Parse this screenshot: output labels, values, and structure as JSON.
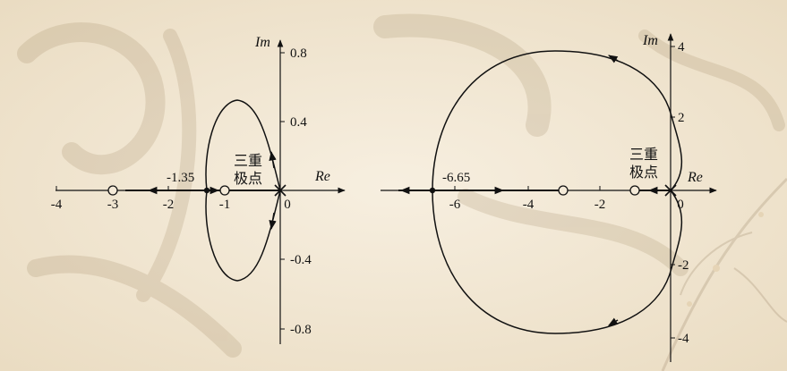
{
  "colors": {
    "background": "#f4ead8",
    "ink": "#111111"
  },
  "left_plot": {
    "axis_labels": {
      "real": "Re",
      "imag": "Im"
    },
    "x_ticks": [
      "-4",
      "-3",
      "-2",
      "-1",
      "0"
    ],
    "y_ticks": [
      "0.8",
      "0.4",
      "-0.4",
      "-0.8"
    ],
    "breakaway_label": "-1.35",
    "pole_note_line1": "三重",
    "pole_note_line2": "极点"
  },
  "right_plot": {
    "axis_labels": {
      "real": "Re",
      "imag": "Im"
    },
    "x_ticks": [
      "-6",
      "-4",
      "-2",
      "0"
    ],
    "y_ticks": [
      "4",
      "2",
      "-2",
      "-4"
    ],
    "breakaway_label": "-6.65",
    "pole_note_line1": "三重",
    "pole_note_line2": "极点"
  }
}
